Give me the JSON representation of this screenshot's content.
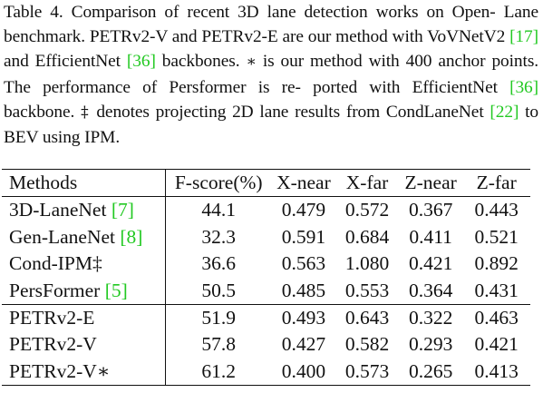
{
  "caption": {
    "line1": "Table 4. Comparison of recent 3D lane detection works on Open-",
    "line2": "Lane benchmark. PETRv2-V and PETRv2-E are our method with",
    "line3_a": "VoVNetV2 ",
    "line3_cite1": "[17]",
    "line3_b": " and EfficientNet ",
    "line3_cite2": "[36]",
    "line3_c": " backbones.",
    "line3_sym": "∗",
    "line3_d": " is our method",
    "line4": "with 400 anchor points.  The performance of Persformer is re-",
    "line5_a": "ported with EfficientNet ",
    "line5_cite": "[36]",
    "line5_b": " backbone.",
    "line5_sym": "‡",
    "line5_c": " denotes projecting 2D",
    "line6_a": "lane results from CondLaneNet  ",
    "line6_cite": "[22]",
    "line6_b": " to BEV using IPM."
  },
  "table": {
    "headers": [
      "Methods",
      "F-score(%)",
      "X-near",
      "X-far",
      "Z-near",
      "Z-far"
    ],
    "rows": [
      {
        "method": "3D-LaneNet ",
        "cite": "[7]",
        "fscore": "44.1",
        "xnear": "0.479",
        "xfar": "0.572",
        "znear": "0.367",
        "zfar": "0.443"
      },
      {
        "method": "Gen-LaneNet ",
        "cite": "[8]",
        "fscore": "32.3",
        "xnear": "0.591",
        "xfar": "0.684",
        "znear": "0.411",
        "zfar": "0.521"
      },
      {
        "method": "Cond-IPM‡",
        "cite": "",
        "fscore": "36.6",
        "xnear": "0.563",
        "xfar": "1.080",
        "znear": "0.421",
        "zfar": "0.892"
      },
      {
        "method": "PersFormer ",
        "cite": "[5]",
        "fscore": "50.5",
        "xnear": "0.485",
        "xfar": "0.553",
        "znear": "0.364",
        "zfar": "0.431"
      },
      {
        "method": "PETRv2-E",
        "cite": "",
        "fscore": "51.9",
        "xnear": "0.493",
        "xfar": "0.643",
        "znear": "0.322",
        "zfar": "0.463"
      },
      {
        "method": "PETRv2-V",
        "cite": "",
        "fscore": "57.8",
        "xnear": "0.427",
        "xfar": "0.582",
        "znear": "0.293",
        "zfar": "0.421"
      },
      {
        "method": "PETRv2-V∗",
        "cite": "",
        "fscore": "61.2",
        "xnear": "0.400",
        "xfar": "0.573",
        "znear": "0.265",
        "zfar": "0.413"
      }
    ]
  },
  "colors": {
    "citation": "#22c922",
    "text": "#111111"
  }
}
